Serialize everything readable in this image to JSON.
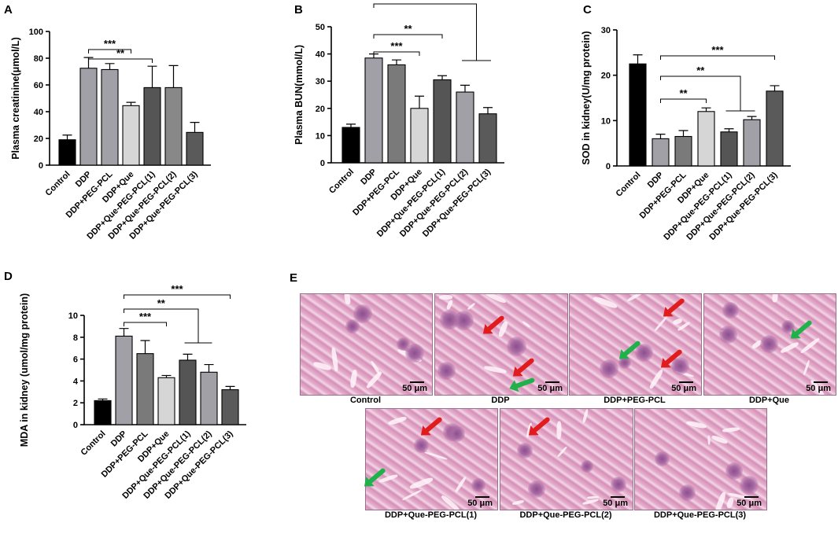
{
  "chart_data": [
    {
      "panel": "A",
      "type": "bar",
      "ylabel": "Plasma creatinine(μmol/L)",
      "ylim": [
        0,
        100
      ],
      "yticks": [
        0,
        20,
        40,
        60,
        80,
        100
      ],
      "categories": [
        "Control",
        "DDP",
        "DDP+PEG-PCL",
        "DDP+Que",
        "DDP+Que-PEG-PCL(1)",
        "DDP+Que-PEG-PCL(2)",
        "DDP+Que-PEG-PCL(3)"
      ],
      "values": [
        19,
        72.5,
        71.5,
        44.5,
        58,
        58,
        24.5
      ],
      "errors": [
        3.5,
        8,
        4.5,
        2.5,
        16,
        16.5,
        7.5
      ],
      "colors": [
        "#000000",
        "#a0a0a6",
        "#a0a0a6",
        "#d6d6d6",
        "#555555",
        "#888888",
        "#5a5a5a"
      ],
      "significance": [
        {
          "label": "**",
          "from": 1,
          "to": 3
        },
        {
          "label": "***",
          "from": 1,
          "to": 6
        }
      ]
    },
    {
      "panel": "B",
      "type": "bar",
      "ylabel": "Plasma BUN(mmol/L)",
      "ylim": [
        0,
        50
      ],
      "yticks": [
        0,
        10,
        20,
        30,
        40,
        50
      ],
      "categories": [
        "Control",
        "DDP",
        "DDP+PEG-PCL",
        "DDP+Que",
        "DDP+Que-PEG-PCL(1)",
        "DDP+Que-PEG-PCL(2)",
        "DDP+Que-PEG-PCL(3)"
      ],
      "values": [
        13,
        38.5,
        36,
        20,
        30.5,
        26,
        18
      ],
      "errors": [
        1.2,
        1.5,
        1.8,
        4.5,
        1.5,
        2.5,
        2.3
      ],
      "colors": [
        "#000000",
        "#a0a0a6",
        "#7a7a7a",
        "#d6d6d6",
        "#555555",
        "#a0a0a6",
        "#5a5a5a"
      ],
      "significance": [
        {
          "label": "***",
          "from": 1,
          "to": 3
        },
        {
          "label": "**",
          "from": 1,
          "to": 4
        },
        {
          "label": "***",
          "from": 1,
          "to": "5-6"
        }
      ]
    },
    {
      "panel": "C",
      "type": "bar",
      "ylabel": "SOD in kidney(U/mg protein)",
      "ylim": [
        0,
        30
      ],
      "yticks": [
        0,
        10,
        20,
        30
      ],
      "categories": [
        "Control",
        "DDP",
        "DDP+PEG-PCL",
        "DDP+Que",
        "DDP+Que-PEG-PCL(1)",
        "DDP+Que-PEG-PCL(2)",
        "DDP+Que-PEG-PCL(3)"
      ],
      "values": [
        22.5,
        6,
        6.5,
        12,
        7.5,
        10.2,
        16.5
      ],
      "errors": [
        2,
        1,
        1.3,
        0.8,
        0.7,
        0.7,
        1.2
      ],
      "colors": [
        "#000000",
        "#a0a0a6",
        "#7a7a7a",
        "#d6d6d6",
        "#555555",
        "#a0a0a6",
        "#5a5a5a"
      ],
      "significance": [
        {
          "label": "**",
          "from": 1,
          "to": 3
        },
        {
          "label": "**",
          "from": 1,
          "to": "4-5"
        },
        {
          "label": "***",
          "from": 1,
          "to": 6
        }
      ]
    },
    {
      "panel": "D",
      "type": "bar",
      "ylabel": "MDA in kidney (umol/mg protein)",
      "ylim": [
        0,
        10
      ],
      "yticks": [
        0,
        2,
        4,
        6,
        8,
        10
      ],
      "categories": [
        "Control",
        "DDP",
        "DDP+PEG-PCL",
        "DDP+Que",
        "DDP+Que-PEG-PCL(1)",
        "DDP+Que-PEG-PCL(2)",
        "DDP+Que-PEG-PCL(3)"
      ],
      "values": [
        2.2,
        8.1,
        6.5,
        4.3,
        5.9,
        4.8,
        3.2
      ],
      "errors": [
        0.15,
        0.7,
        1.2,
        0.2,
        0.55,
        0.7,
        0.3
      ],
      "colors": [
        "#000000",
        "#a0a0a6",
        "#7a7a7a",
        "#d6d6d6",
        "#555555",
        "#a0a0a6",
        "#5a5a5a"
      ],
      "significance": [
        {
          "label": "***",
          "from": 1,
          "to": 3
        },
        {
          "label": "**",
          "from": 1,
          "to": "4-5"
        },
        {
          "label": "***",
          "from": 1,
          "to": 6
        }
      ]
    }
  ],
  "histology": {
    "panel": "E",
    "scale_label": "50 μm",
    "images": [
      {
        "label": "Control",
        "red_arrows": 0,
        "green_arrows": 0
      },
      {
        "label": "DDP",
        "red_arrows": 2,
        "green_arrows": 1
      },
      {
        "label": "DDP+PEG-PCL",
        "red_arrows": 2,
        "green_arrows": 1
      },
      {
        "label": "DDP+Que",
        "red_arrows": 0,
        "green_arrows": 1
      },
      {
        "label": "DDP+Que-PEG-PCL(1)",
        "red_arrows": 1,
        "green_arrows": 1
      },
      {
        "label": "DDP+Que-PEG-PCL(2)",
        "red_arrows": 1,
        "green_arrows": 0
      },
      {
        "label": "DDP+Que-PEG-PCL(3)",
        "red_arrows": 0,
        "green_arrows": 0
      }
    ],
    "arrow_colors": {
      "red": "#e01c1c",
      "green": "#1fb24a"
    }
  }
}
